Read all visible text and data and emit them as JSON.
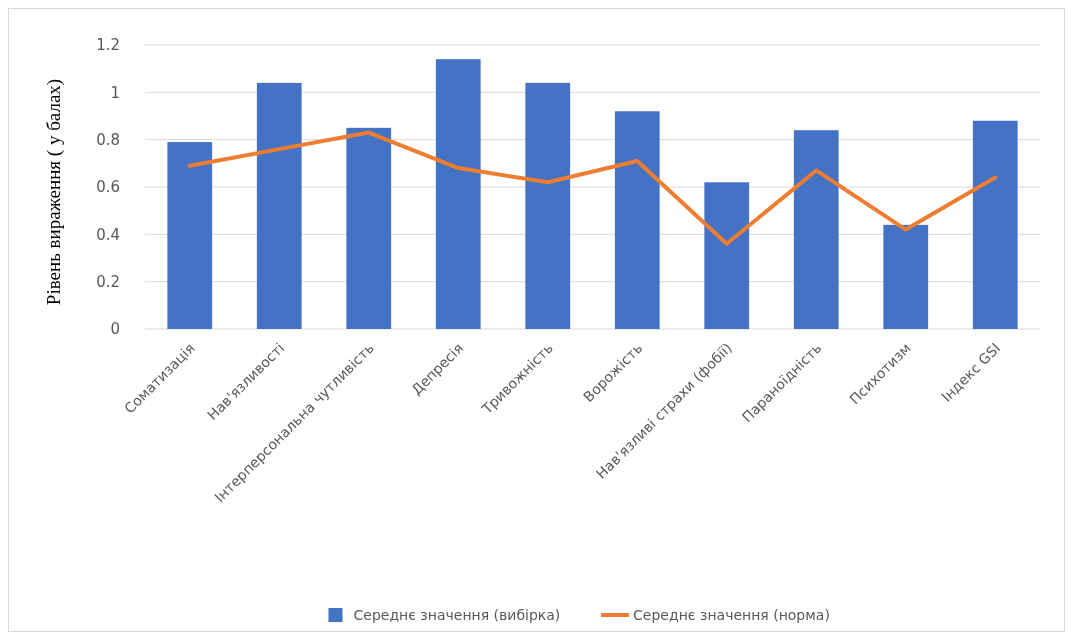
{
  "chart_data": {
    "type": "bar",
    "ylabel": "Рівень вираження ( у балах)",
    "categories": [
      "Соматизація",
      "Нав'язливості",
      "Інтерперсональна чутливість",
      "Депресія",
      "Тривожність",
      "Ворожість",
      "Нав'язливі страхи (фобії)",
      "Параноїдність",
      "Психотизм",
      "Індекс GSI"
    ],
    "series": [
      {
        "name": "Середнє значення (вибірка)",
        "color": "#4472c4",
        "values": [
          0.79,
          1.04,
          0.85,
          1.14,
          1.04,
          0.92,
          0.62,
          0.84,
          0.44,
          0.88
        ]
      },
      {
        "name": "Середнє значення (норма)",
        "type": "line",
        "color": "#ed7d31",
        "values": [
          0.69,
          0.76,
          0.83,
          0.68,
          0.62,
          0.71,
          0.36,
          0.67,
          0.42,
          0.64
        ]
      }
    ],
    "ylim": [
      0,
      1.2
    ],
    "yticks": [
      0,
      0.2,
      0.4,
      0.6,
      0.8,
      1,
      1.2
    ],
    "grid": "y",
    "legend": "bottom",
    "marker": "none",
    "line_style": "solid"
  }
}
